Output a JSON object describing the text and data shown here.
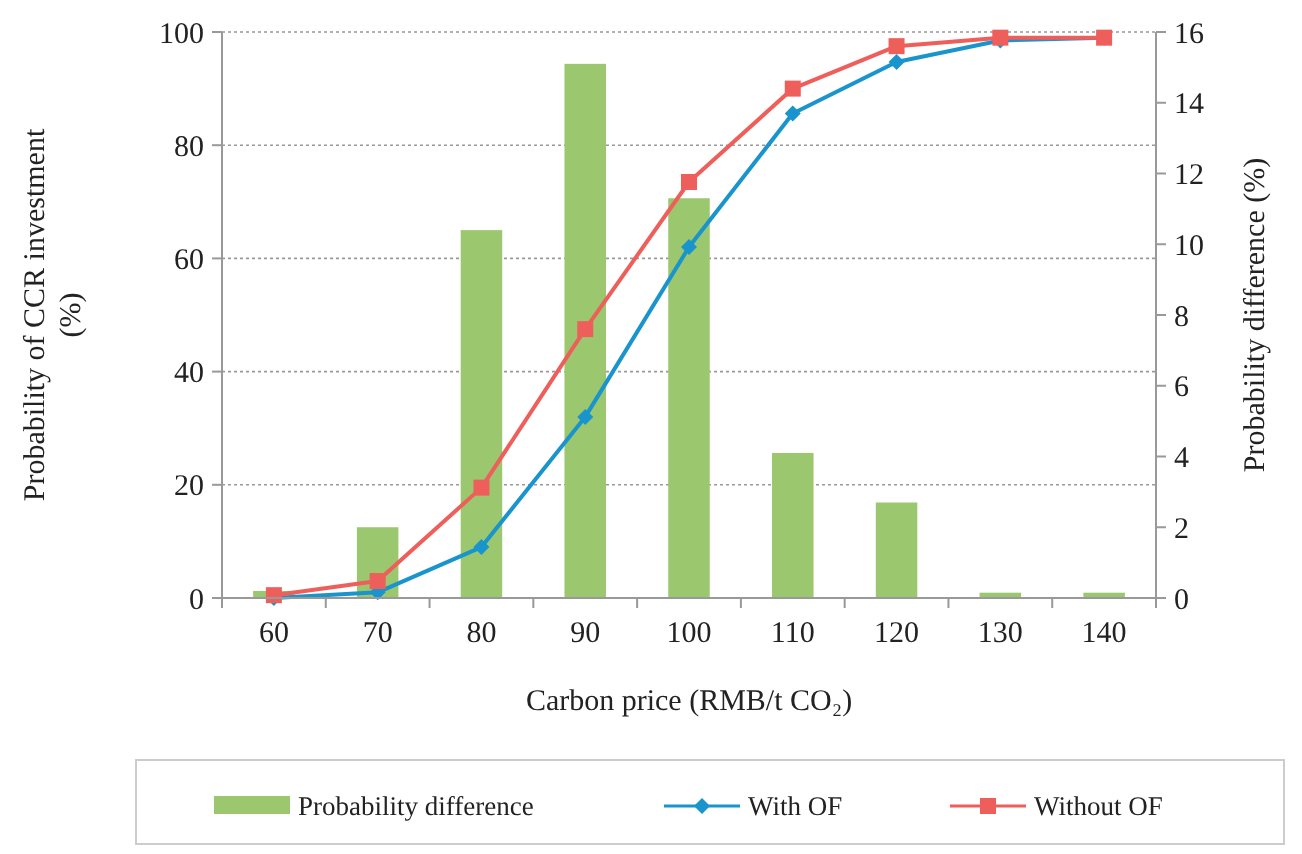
{
  "chart_data": {
    "type": "line",
    "xlabel": "Carbon price (RMB/t CO₂)",
    "ylabel": "Probability of CCR investment (%)",
    "y2label": "Probability difference (%)",
    "categories": [
      "60",
      "70",
      "80",
      "90",
      "100",
      "110",
      "120",
      "130",
      "140"
    ],
    "ylim": [
      0,
      100
    ],
    "yticks": [
      0,
      20,
      40,
      60,
      80,
      100
    ],
    "y2lim": [
      0,
      16
    ],
    "y2ticks": [
      0,
      2,
      4,
      6,
      8,
      10,
      12,
      14,
      16
    ],
    "grid": "y",
    "legend": "bottom",
    "series": [
      {
        "name": "Probability difference",
        "type": "bar",
        "axis": "y2",
        "color": "#9bc86e",
        "values": [
          0.2,
          2,
          10.4,
          15.1,
          11.3,
          4.1,
          2.7,
          0.15,
          0.15
        ]
      },
      {
        "name": "With OF",
        "marker": "diamond",
        "color": "#1a94cc",
        "values": [
          0,
          1,
          9,
          32,
          62,
          85.6,
          94.7,
          98.5,
          99
        ]
      },
      {
        "name": "Without OF",
        "marker": "square",
        "color": "#ee5f5b",
        "values": [
          0.5,
          3,
          19.5,
          47.5,
          73.5,
          90,
          97.5,
          99,
          99
        ]
      }
    ]
  }
}
